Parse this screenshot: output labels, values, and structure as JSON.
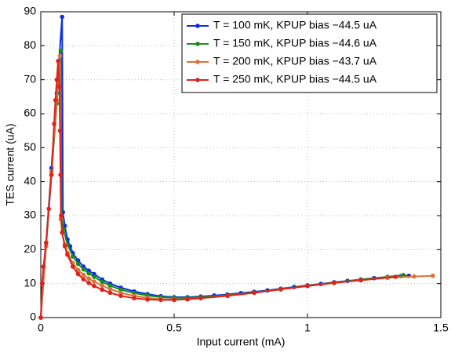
{
  "chart_data": {
    "type": "line",
    "xlabel": "Input current (mA)",
    "ylabel": "TES current (uA)",
    "xlim": [
      0,
      1.5
    ],
    "xticks": [
      0,
      0.5,
      1,
      1.5
    ],
    "ylim": [
      0,
      90
    ],
    "yticks": [
      0,
      10,
      20,
      30,
      40,
      50,
      60,
      70,
      80,
      90
    ],
    "grid": true,
    "legend": "upper right",
    "series": [
      {
        "name": "T = 100 mK, KPUP bias −44.5 uA",
        "color": "#0a2fe0",
        "x": [
          0,
          0.02,
          0.04,
          0.06,
          0.08,
          0.083,
          0.09,
          0.1,
          0.11,
          0.12,
          0.14,
          0.16,
          0.18,
          0.2,
          0.23,
          0.26,
          0.3,
          0.35,
          0.4,
          0.45,
          0.5,
          0.55,
          0.6,
          0.65,
          0.7,
          0.75,
          0.8,
          0.85,
          0.9,
          0.95,
          1.0,
          1.05,
          1.1,
          1.15,
          1.2,
          1.25,
          1.3,
          1.35,
          1.38
        ],
        "values": [
          0,
          22,
          44,
          66,
          88.5,
          31,
          27,
          23,
          21,
          19,
          16.8,
          15,
          13.8,
          12.8,
          11.2,
          10,
          8.8,
          7.7,
          6.9,
          6.3,
          6,
          6,
          6.2,
          6.5,
          6.8,
          7.2,
          7.6,
          8,
          8.5,
          9,
          9.5,
          9.9,
          10.4,
          10.8,
          11.2,
          11.6,
          11.9,
          12.2,
          12.3
        ]
      },
      {
        "name": "T = 150 mK, KPUP bias −44.6 uA",
        "color": "#1a8c1a",
        "x": [
          0,
          0.02,
          0.04,
          0.06,
          0.075,
          0.078,
          0.085,
          0.1,
          0.12,
          0.14,
          0.16,
          0.18,
          0.2,
          0.23,
          0.26,
          0.3,
          0.35,
          0.4,
          0.45,
          0.5,
          0.55,
          0.6,
          0.7,
          0.8,
          0.9,
          1.0,
          1.1,
          1.2,
          1.3,
          1.36
        ],
        "values": [
          0,
          21,
          42,
          63,
          78.5,
          30,
          26,
          21.5,
          18,
          15.8,
          14.2,
          13,
          12,
          10.5,
          9.4,
          8.2,
          7.2,
          6.5,
          6,
          5.8,
          5.8,
          6,
          6.6,
          7.4,
          8.4,
          9.4,
          10.3,
          11.2,
          12,
          12.5
        ]
      },
      {
        "name": "T = 200 mK, KPUP bias −43.7 uA",
        "color": "#d9733a",
        "x": [
          0,
          0.02,
          0.04,
          0.06,
          0.072,
          0.075,
          0.08,
          0.09,
          0.1,
          0.12,
          0.14,
          0.16,
          0.18,
          0.2,
          0.23,
          0.26,
          0.3,
          0.35,
          0.4,
          0.45,
          0.5,
          0.55,
          0.6,
          0.7,
          0.8,
          0.9,
          1.0,
          1.1,
          1.2,
          1.3,
          1.4,
          1.47
        ],
        "values": [
          0,
          21,
          43,
          64,
          77,
          29,
          25,
          21.5,
          19,
          16,
          14,
          12.6,
          11.5,
          10.6,
          9.4,
          8.4,
          7.3,
          6.4,
          5.8,
          5.4,
          5.3,
          5.4,
          5.7,
          6.4,
          7.3,
          8.3,
          9.3,
          10.2,
          11,
          11.7,
          12.1,
          12.3
        ]
      },
      {
        "name": "T = 250 mK, KPUP bias −44.5 uA",
        "color": "#e0201c",
        "x": [
          0,
          0.005,
          0.01,
          0.02,
          0.03,
          0.04,
          0.05,
          0.055,
          0.06,
          0.065,
          0.07,
          0.072,
          0.074,
          0.076,
          0.08,
          0.09,
          0.1,
          0.12,
          0.14,
          0.16,
          0.18,
          0.2,
          0.23,
          0.26,
          0.3,
          0.35,
          0.4,
          0.45,
          0.5,
          0.55,
          0.6,
          0.7,
          0.8,
          0.9,
          1.0,
          1.1,
          1.2,
          1.33
        ],
        "values": [
          0,
          10,
          15,
          22,
          32,
          42,
          57,
          64,
          70,
          75.5,
          68,
          55,
          42,
          30,
          25,
          21,
          18.5,
          15,
          12.8,
          11.3,
          10.2,
          9.3,
          8.2,
          7.3,
          6.4,
          5.7,
          5.3,
          5.2,
          5.2,
          5.4,
          5.7,
          6.4,
          7.3,
          8.3,
          9.3,
          10.2,
          11,
          12
        ]
      }
    ]
  }
}
